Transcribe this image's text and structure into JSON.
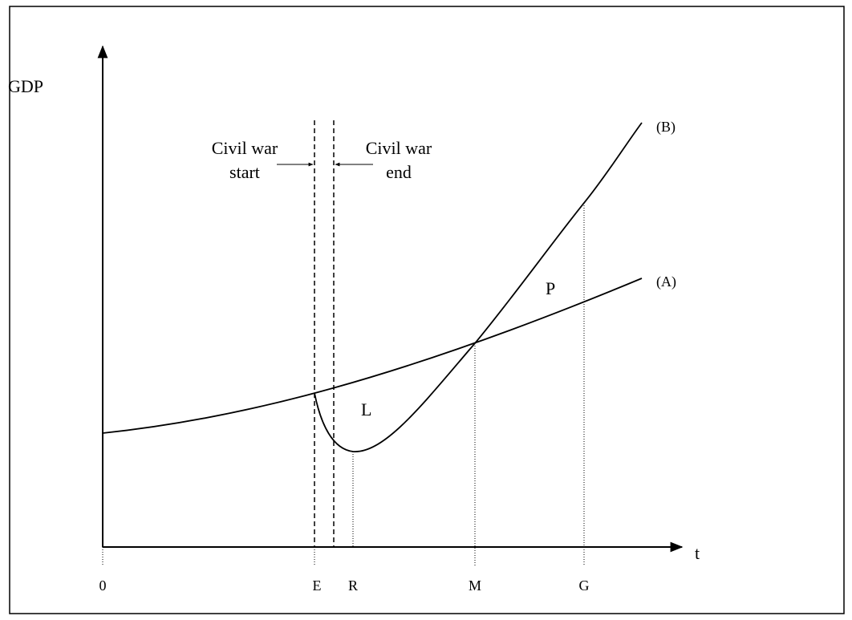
{
  "y_axis_label": "GDP",
  "x_axis_label": "t",
  "annotations": {
    "war_start": [
      "Civil war",
      "start"
    ],
    "war_end": [
      "Civil war",
      "end"
    ]
  },
  "curve_labels": {
    "b": "(B)",
    "a": "(A)"
  },
  "region_labels": {
    "p": "P",
    "l": "L"
  },
  "x_ticks": [
    "0",
    "E",
    "R",
    "M",
    "G"
  ]
}
